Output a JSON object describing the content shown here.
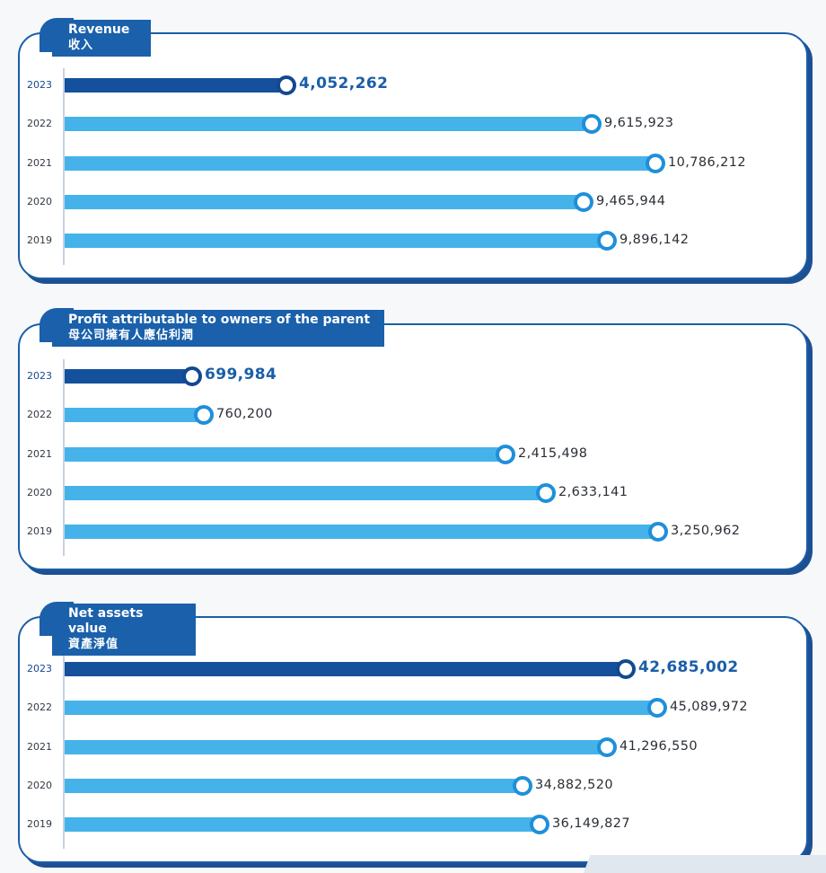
{
  "chart_data": [
    {
      "type": "bar",
      "orientation": "horizontal",
      "title": "Revenue",
      "title_zh": "收入",
      "categories": [
        "2023",
        "2022",
        "2021",
        "2020",
        "2019"
      ],
      "values": [
        4052262,
        9615923,
        10786212,
        9465944,
        9896142
      ],
      "value_labels": [
        "4,052,262",
        "9,615,923",
        "10,786,212",
        "9,465,944",
        "9,896,142"
      ],
      "highlight_category": "2023",
      "xlim": [
        0,
        11800000
      ]
    },
    {
      "type": "bar",
      "orientation": "horizontal",
      "title": "Profit attributable to owners of the parent",
      "title_zh": "母公司擁有人應佔利潤",
      "categories": [
        "2023",
        "2022",
        "2021",
        "2020",
        "2019"
      ],
      "values": [
        699984,
        760200,
        2415498,
        2633141,
        3250962
      ],
      "value_labels": [
        "699,984",
        "760,200",
        "2,415,498",
        "2,633,141",
        "3,250,962"
      ],
      "highlight_category": "2023",
      "xlim": [
        0,
        3540000
      ]
    },
    {
      "type": "bar",
      "orientation": "horizontal",
      "title": "Net assets value",
      "title_zh": "資產淨值",
      "categories": [
        "2023",
        "2022",
        "2021",
        "2020",
        "2019"
      ],
      "values": [
        42685002,
        45089972,
        41296550,
        34882520,
        36149827
      ],
      "value_labels": [
        "42,685,002",
        "45,089,972",
        "41,296,550",
        "34,882,520",
        "36,149,827"
      ],
      "highlight_category": "2023",
      "xlim": [
        0,
        49200000
      ]
    }
  ],
  "colors": {
    "highlight_bar": "#14509c",
    "bar": "#45b3ea",
    "frame": "#1a5ea8",
    "value_highlight": "#1a5ea8"
  }
}
